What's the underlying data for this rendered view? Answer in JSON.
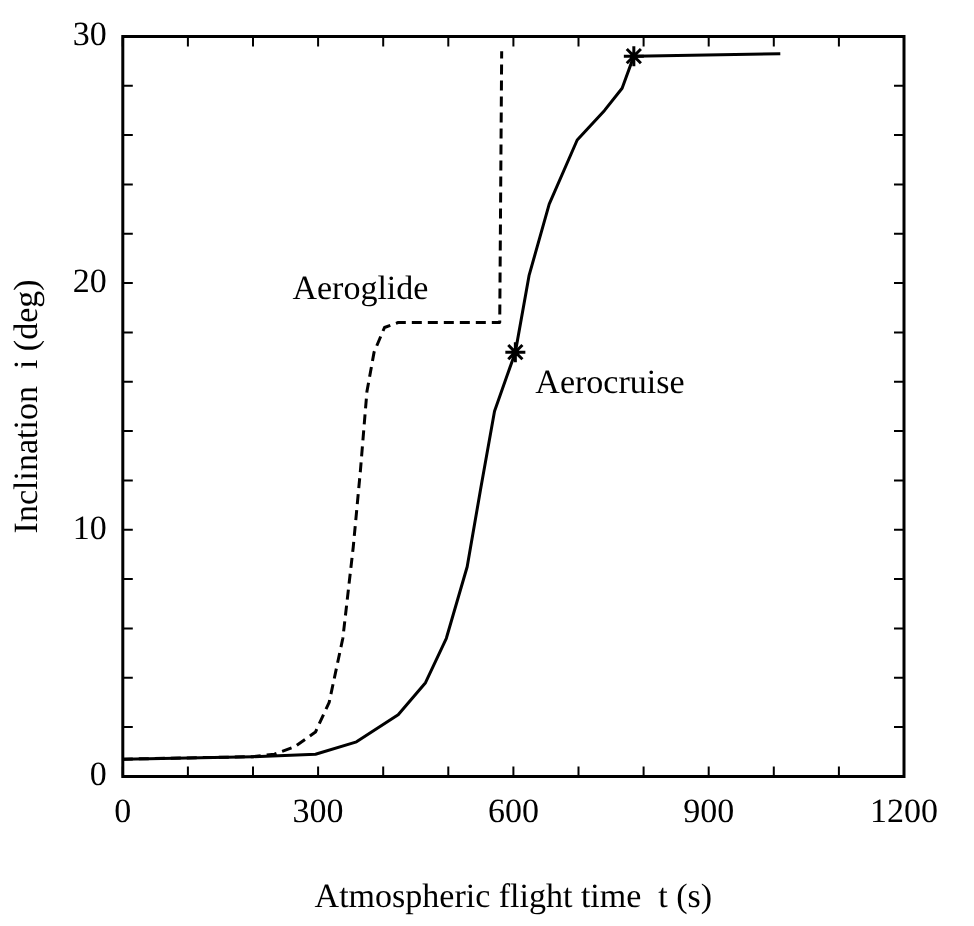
{
  "chart_data": {
    "type": "line",
    "xlabel": "Atmospheric flight time  t (s)",
    "ylabel": "Inclination  i (deg)",
    "xlim": [
      0,
      1200
    ],
    "ylim": [
      0,
      30
    ],
    "xticks": [
      0,
      {
        "value": 100,
        "label": null
      },
      {
        "value": 200,
        "label": null
      },
      300,
      {
        "value": 400,
        "label": null
      },
      {
        "value": 500,
        "label": null
      },
      600,
      {
        "value": 700,
        "label": null
      },
      {
        "value": 800,
        "label": null
      },
      900,
      {
        "value": 1000,
        "label": null
      },
      {
        "value": 1100,
        "label": null
      },
      1200
    ],
    "yticks": [
      0,
      {
        "value": 2,
        "label": null
      },
      {
        "value": 4,
        "label": null
      },
      {
        "value": 6,
        "label": null
      },
      {
        "value": 8,
        "label": null
      },
      10,
      {
        "value": 12,
        "label": null
      },
      {
        "value": 14,
        "label": null
      },
      {
        "value": 16,
        "label": null
      },
      {
        "value": 18,
        "label": null
      },
      20,
      {
        "value": 22,
        "label": null
      },
      {
        "value": 24,
        "label": null
      },
      {
        "value": 26,
        "label": null
      },
      {
        "value": 28,
        "label": null
      },
      30
    ],
    "grid": false,
    "legend": false,
    "marker": "none",
    "series": [
      {
        "name": "Aeroglide",
        "color": "#000000",
        "line_style": "dashed",
        "x": [
          0,
          200,
          233,
          264,
          296,
          317,
          338,
          354,
          365,
          375,
          386,
          402,
          423,
          579,
          582
        ],
        "values": [
          0.7,
          0.8,
          0.9,
          1.2,
          1.8,
          3.0,
          5.6,
          9.3,
          12.4,
          15.6,
          17.2,
          18.2,
          18.4,
          18.4,
          29.4
        ]
      },
      {
        "name": "Aerocruise",
        "color": "#000000",
        "line_style": "solid",
        "x": [
          0,
          200,
          296,
          359,
          423,
          465,
          497,
          529,
          550,
          571,
          603,
          624,
          655,
          698,
          740,
          767,
          785,
          1010
        ],
        "values": [
          0.7,
          0.8,
          0.9,
          1.4,
          2.5,
          3.8,
          5.6,
          8.5,
          11.7,
          14.8,
          17.2,
          20.3,
          23.2,
          25.8,
          27.0,
          27.9,
          29.2,
          29.3
        ]
      },
      {
        "type": "scatter",
        "marker": "cross",
        "color": "#000000",
        "x": [
          603,
          785
        ],
        "values": [
          17.2,
          29.2
        ]
      }
    ]
  }
}
